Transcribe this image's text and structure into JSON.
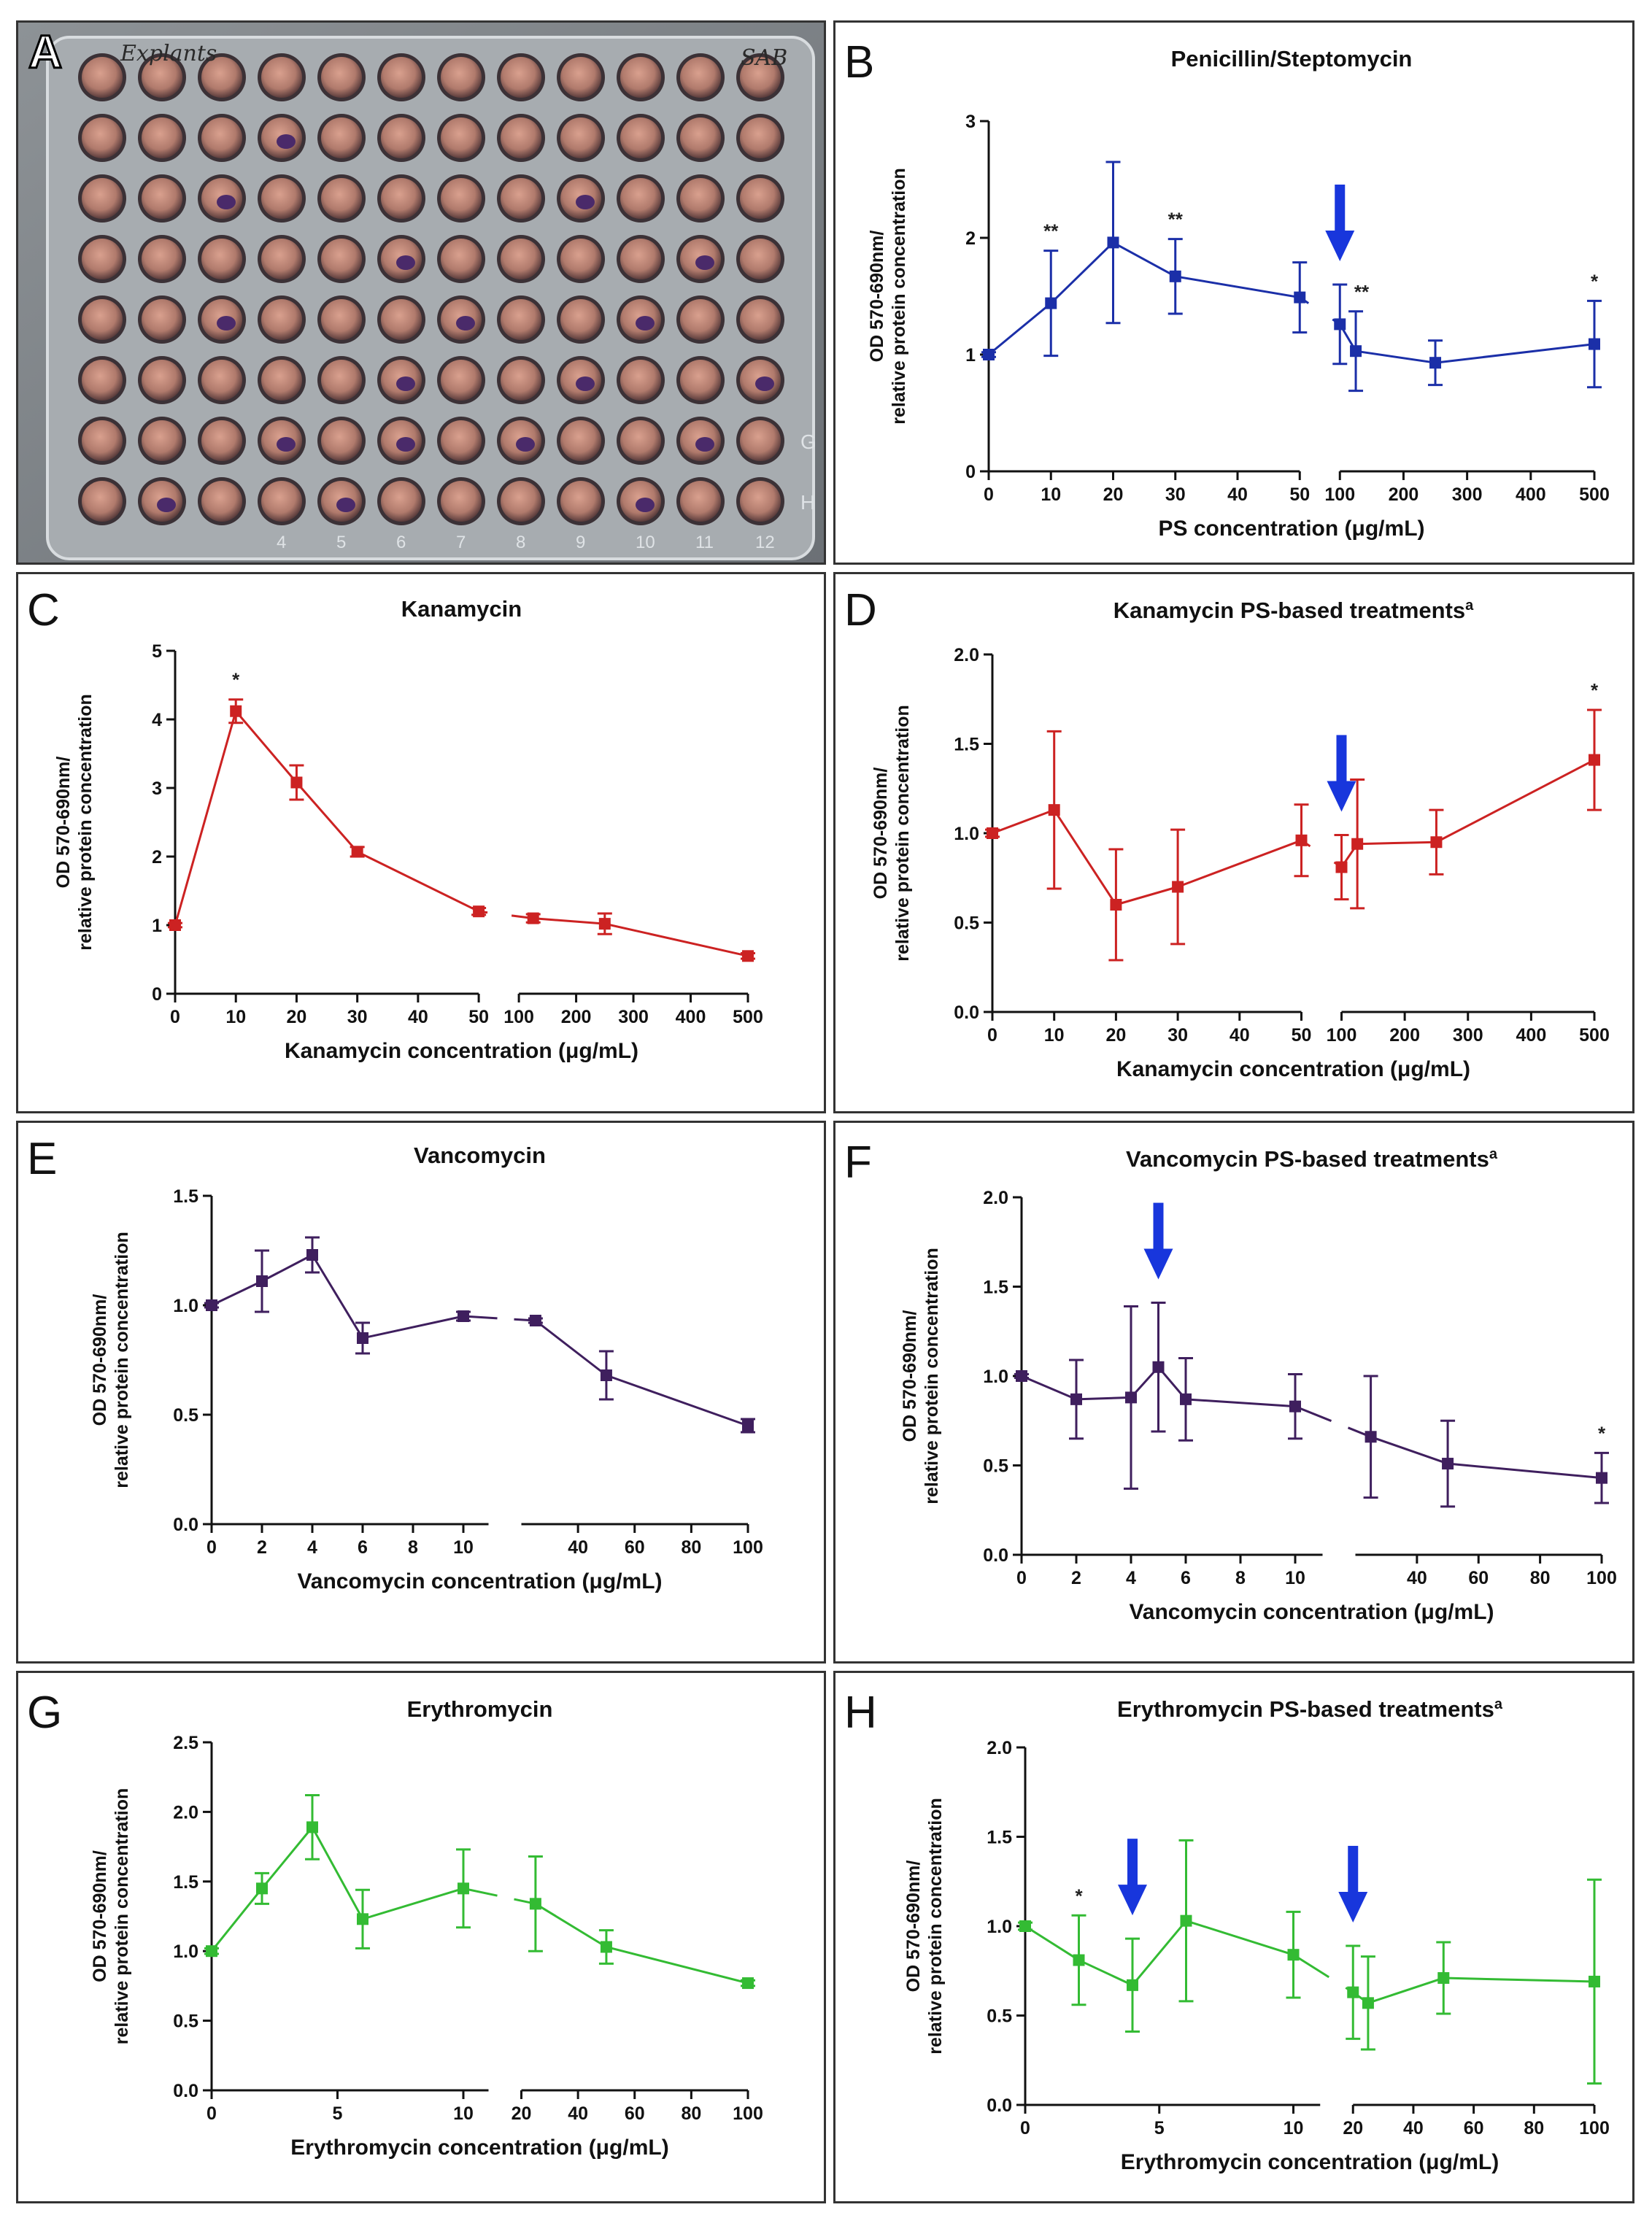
{
  "photo": {
    "letter": "A",
    "handwriting_left": "Explants",
    "handwriting_right": "SAB",
    "rows": 8,
    "cols": 12,
    "row_labels": [
      "",
      "",
      "",
      "",
      "",
      "",
      "G",
      "H"
    ],
    "col_labels": [
      "",
      "",
      "",
      "4",
      "5",
      "6",
      "7",
      "8",
      "9",
      "10",
      "11",
      "12"
    ]
  },
  "colors": {
    "blue": "#1b2fa8",
    "red": "#cc2222",
    "purple": "#3f1f5e",
    "green": "#33bb33",
    "arrow": "#1836dc"
  },
  "ylabel_line1": "OD 570-690nm/",
  "ylabel_line2": "relative protein concentration",
  "chart_data": [
    {
      "id": "B",
      "type": "line",
      "title": "Penicillin/Steptomycin",
      "title_sup": "",
      "xlabel": "PS concentration (μg/mL)",
      "ylabel": "OD 570-690nm/ relative protein concentration",
      "color_key": "blue",
      "ylim": [
        0,
        3
      ],
      "yticks": [
        "0",
        "1",
        "2",
        "3"
      ],
      "segments": [
        {
          "xlim": [
            0,
            50
          ],
          "xticks": [
            "0",
            "10",
            "20",
            "30",
            "40",
            "50"
          ],
          "points": [
            {
              "x": 0,
              "y": 1.0,
              "err": 0.02
            },
            {
              "x": 10,
              "y": 1.44,
              "err": 0.45,
              "label": "**"
            },
            {
              "x": 20,
              "y": 1.96,
              "err": 0.69
            },
            {
              "x": 30,
              "y": 1.67,
              "err": 0.32,
              "label": "**"
            },
            {
              "x": 50,
              "y": 1.49,
              "err": 0.3
            }
          ]
        },
        {
          "xlim": [
            100,
            500
          ],
          "xticks": [
            "100",
            "200",
            "300",
            "400",
            "500"
          ],
          "points": [
            {
              "x": 100,
              "y": 1.26,
              "err": 0.34
            },
            {
              "x": 125,
              "y": 1.03,
              "err": 0.34,
              "label": "**"
            },
            {
              "x": 250,
              "y": 0.93,
              "err": 0.19
            },
            {
              "x": 500,
              "y": 1.09,
              "err": 0.37,
              "label": "*"
            }
          ]
        }
      ],
      "arrows": [
        {
          "segment": 1,
          "x": 100
        }
      ]
    },
    {
      "id": "C",
      "type": "line",
      "title": "Kanamycin",
      "title_sup": "",
      "xlabel": "Kanamycin concentration (μg/mL)",
      "ylabel": "OD 570-690nm/ relative protein concentration",
      "color_key": "red",
      "ylim": [
        0,
        5
      ],
      "yticks": [
        "0",
        "1",
        "2",
        "3",
        "4",
        "5"
      ],
      "segments": [
        {
          "xlim": [
            0,
            50
          ],
          "xticks": [
            "0",
            "10",
            "20",
            "30",
            "40",
            "50"
          ],
          "points": [
            {
              "x": 0,
              "y": 1.0,
              "err": 0.03
            },
            {
              "x": 10,
              "y": 4.12,
              "err": 0.17,
              "label": "*"
            },
            {
              "x": 20,
              "y": 3.08,
              "err": 0.25
            },
            {
              "x": 30,
              "y": 2.07,
              "err": 0.07
            },
            {
              "x": 50,
              "y": 1.2,
              "err": 0.05
            }
          ]
        },
        {
          "xlim": [
            100,
            500
          ],
          "xticks": [
            "100",
            "200",
            "300",
            "400",
            "500"
          ],
          "points": [
            {
              "x": 125,
              "y": 1.1,
              "err": 0.06
            },
            {
              "x": 250,
              "y": 1.02,
              "err": 0.15
            },
            {
              "x": 500,
              "y": 0.55,
              "err": 0.04
            }
          ]
        }
      ],
      "arrows": []
    },
    {
      "id": "D",
      "type": "line",
      "title": "Kanamycin PS-based treatments",
      "title_sup": "a",
      "xlabel": "Kanamycin concentration (μg/mL)",
      "ylabel": "OD 570-690nm/ relative protein concentration",
      "color_key": "red",
      "ylim": [
        0,
        2
      ],
      "yticks": [
        "0.0",
        "0.5",
        "1.0",
        "1.5",
        "2.0"
      ],
      "segments": [
        {
          "xlim": [
            0,
            50
          ],
          "xticks": [
            "0",
            "10",
            "20",
            "30",
            "40",
            "50"
          ],
          "points": [
            {
              "x": 0,
              "y": 1.0,
              "err": 0.02
            },
            {
              "x": 10,
              "y": 1.13,
              "err": 0.44
            },
            {
              "x": 20,
              "y": 0.6,
              "err": 0.31
            },
            {
              "x": 30,
              "y": 0.7,
              "err": 0.32
            },
            {
              "x": 50,
              "y": 0.96,
              "err": 0.2
            }
          ]
        },
        {
          "xlim": [
            100,
            500
          ],
          "xticks": [
            "100",
            "200",
            "300",
            "400",
            "500"
          ],
          "points": [
            {
              "x": 100,
              "y": 0.81,
              "err": 0.18
            },
            {
              "x": 125,
              "y": 0.94,
              "err": 0.36
            },
            {
              "x": 250,
              "y": 0.95,
              "err": 0.18
            },
            {
              "x": 500,
              "y": 1.41,
              "err": 0.28,
              "label": "*"
            }
          ]
        }
      ],
      "arrows": [
        {
          "segment": 1,
          "x": 100
        }
      ]
    },
    {
      "id": "E",
      "type": "line",
      "title": "Vancomycin",
      "title_sup": "",
      "xlabel": "Vancomycin concentration (μg/mL)",
      "ylabel": "OD 570-690nm/ relative protein concentration",
      "color_key": "purple",
      "ylim": [
        0,
        1.5
      ],
      "yticks": [
        "0.0",
        "0.5",
        "1.0",
        "1.5"
      ],
      "segments": [
        {
          "xlim": [
            0,
            11
          ],
          "xticks": [
            "0",
            "2",
            "4",
            "6",
            "8",
            "10"
          ],
          "tickvals": [
            0,
            2,
            4,
            6,
            8,
            10
          ],
          "points": [
            {
              "x": 0,
              "y": 1.0,
              "err": 0.01
            },
            {
              "x": 2,
              "y": 1.11,
              "err": 0.14
            },
            {
              "x": 4,
              "y": 1.23,
              "err": 0.08
            },
            {
              "x": 6,
              "y": 0.85,
              "err": 0.07
            },
            {
              "x": 10,
              "y": 0.95,
              "err": 0.02
            }
          ]
        },
        {
          "xlim": [
            20,
            100
          ],
          "xticks": [
            "40",
            "60",
            "80",
            "100"
          ],
          "tickvals": [
            40,
            60,
            80,
            100
          ],
          "points": [
            {
              "x": 25,
              "y": 0.93,
              "err": 0.01
            },
            {
              "x": 50,
              "y": 0.68,
              "err": 0.11
            },
            {
              "x": 100,
              "y": 0.45,
              "err": 0.03
            }
          ]
        }
      ],
      "arrows": []
    },
    {
      "id": "F",
      "type": "line",
      "title": "Vancomycin PS-based treatments",
      "title_sup": "a",
      "xlabel": "Vancomycin concentration (μg/mL)",
      "ylabel": "OD 570-690nm/ relative protein concentration",
      "color_key": "purple",
      "ylim": [
        0,
        2
      ],
      "yticks": [
        "0.0",
        "0.5",
        "1.0",
        "1.5",
        "2.0"
      ],
      "segments": [
        {
          "xlim": [
            0,
            11
          ],
          "xticks": [
            "0",
            "2",
            "4",
            "6",
            "8",
            "10"
          ],
          "tickvals": [
            0,
            2,
            4,
            6,
            8,
            10
          ],
          "points": [
            {
              "x": 0,
              "y": 1.0,
              "err": 0.01
            },
            {
              "x": 2,
              "y": 0.87,
              "err": 0.22
            },
            {
              "x": 4,
              "y": 0.88,
              "err": 0.51
            },
            {
              "x": 5,
              "y": 1.05,
              "err": 0.36
            },
            {
              "x": 6,
              "y": 0.87,
              "err": 0.23
            },
            {
              "x": 10,
              "y": 0.83,
              "err": 0.18
            }
          ]
        },
        {
          "xlim": [
            20,
            100
          ],
          "xticks": [
            "40",
            "60",
            "80",
            "100"
          ],
          "tickvals": [
            40,
            60,
            80,
            100
          ],
          "points": [
            {
              "x": 25,
              "y": 0.66,
              "err": 0.34
            },
            {
              "x": 50,
              "y": 0.51,
              "err": 0.24
            },
            {
              "x": 100,
              "y": 0.43,
              "err": 0.14,
              "label": "*"
            }
          ]
        }
      ],
      "arrows": [
        {
          "segment": 0,
          "x": 5
        }
      ]
    },
    {
      "id": "G",
      "type": "line",
      "title": "Erythromycin",
      "title_sup": "",
      "xlabel": "Erythromycin concentration (μg/mL)",
      "ylabel": "OD 570-690nm/ relative protein concentration",
      "color_key": "green",
      "ylim": [
        0,
        2.5
      ],
      "yticks": [
        "0.0",
        "0.5",
        "1.0",
        "1.5",
        "2.0",
        "2.5"
      ],
      "segments": [
        {
          "xlim": [
            0,
            11
          ],
          "xticks": [
            "0",
            "5",
            "10"
          ],
          "tickvals": [
            0,
            5,
            10
          ],
          "points": [
            {
              "x": 0,
              "y": 1.0,
              "err": 0.02
            },
            {
              "x": 2,
              "y": 1.45,
              "err": 0.11
            },
            {
              "x": 4,
              "y": 1.89,
              "err": 0.23
            },
            {
              "x": 6,
              "y": 1.23,
              "err": 0.21
            },
            {
              "x": 10,
              "y": 1.45,
              "err": 0.28
            }
          ]
        },
        {
          "xlim": [
            20,
            100
          ],
          "xticks": [
            "20",
            "40",
            "60",
            "80",
            "100"
          ],
          "tickvals": [
            20,
            40,
            60,
            80,
            100
          ],
          "points": [
            {
              "x": 25,
              "y": 1.34,
              "err": 0.34
            },
            {
              "x": 50,
              "y": 1.03,
              "err": 0.12
            },
            {
              "x": 100,
              "y": 0.77,
              "err": 0.02
            }
          ]
        }
      ],
      "arrows": []
    },
    {
      "id": "H",
      "type": "line",
      "title": "Erythromycin PS-based treatments",
      "title_sup": "a",
      "xlabel": "Erythromycin concentration (μg/mL)",
      "ylabel": "OD 570-690nm/ relative protein concentration",
      "color_key": "green",
      "ylim": [
        0,
        2
      ],
      "yticks": [
        "0.0",
        "0.5",
        "1.0",
        "1.5",
        "2.0"
      ],
      "segments": [
        {
          "xlim": [
            0,
            11
          ],
          "xticks": [
            "0",
            "5",
            "10"
          ],
          "tickvals": [
            0,
            5,
            10
          ],
          "points": [
            {
              "x": 0,
              "y": 1.0,
              "err": 0.02
            },
            {
              "x": 2,
              "y": 0.81,
              "err": 0.25,
              "label": "*"
            },
            {
              "x": 4,
              "y": 0.67,
              "err": 0.26
            },
            {
              "x": 6,
              "y": 1.03,
              "err": 0.45
            },
            {
              "x": 10,
              "y": 0.84,
              "err": 0.24
            }
          ]
        },
        {
          "xlim": [
            20,
            100
          ],
          "xticks": [
            "20",
            "40",
            "60",
            "80",
            "100"
          ],
          "tickvals": [
            20,
            40,
            60,
            80,
            100
          ],
          "points": [
            {
              "x": 20,
              "y": 0.63,
              "err": 0.26
            },
            {
              "x": 25,
              "y": 0.57,
              "err": 0.26
            },
            {
              "x": 50,
              "y": 0.71,
              "err": 0.2
            },
            {
              "x": 100,
              "y": 0.69,
              "err": 0.57
            }
          ]
        }
      ],
      "arrows": [
        {
          "segment": 0,
          "x": 4
        },
        {
          "segment": 1,
          "x": 20
        }
      ]
    }
  ]
}
